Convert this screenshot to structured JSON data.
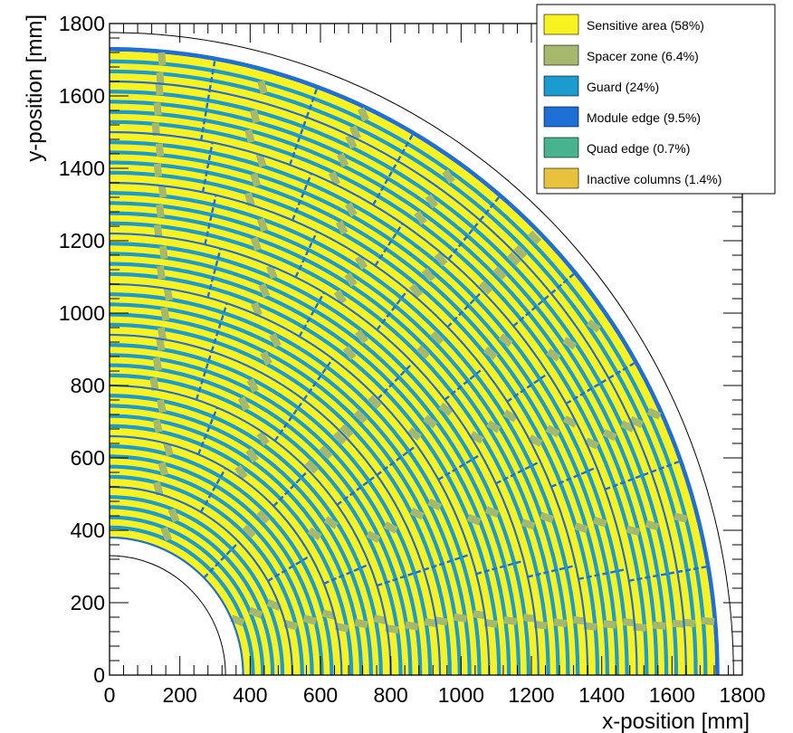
{
  "chart_data": {
    "type": "heatmap",
    "xlabel": "x-position [mm]",
    "ylabel": "y-position [mm]",
    "xlim": [
      0,
      1800
    ],
    "ylim": [
      0,
      1800
    ],
    "x_ticks": [
      "0",
      "200",
      "400",
      "600",
      "800",
      "1000",
      "1200",
      "1400",
      "1600",
      "1800"
    ],
    "y_ticks": [
      "0",
      "200",
      "400",
      "600",
      "800",
      "1000",
      "1200",
      "1400",
      "1600",
      "1800"
    ],
    "grid": false,
    "legend_position": "top-right",
    "legend": [
      {
        "label": "Sensitive area (58%)",
        "color": "#f8f320",
        "fraction": 58
      },
      {
        "label": "Spacer zone (6.4%)",
        "color": "#a6b86c",
        "fraction": 6.4
      },
      {
        "label": "Guard (24%)",
        "color": "#1c9bcf",
        "fraction": 24
      },
      {
        "label": "Module edge (9.5%)",
        "color": "#1e6fd6",
        "fraction": 9.5
      },
      {
        "label": "Quad edge (0.7%)",
        "color": "#48b38f",
        "fraction": 0.7
      },
      {
        "label": "Inactive columns (1.4%)",
        "color": "#e8c23c",
        "fraction": 1.4
      }
    ],
    "geometry": {
      "inner_circle_radius_mm": 330,
      "outer_circle_radius_mm": 1775,
      "active_inner_radius_mm": 380,
      "active_outer_radius_mm": 1735,
      "ring_boundaries_mm": [
        380,
        520,
        660,
        800,
        940,
        1080,
        1220,
        1360,
        1500,
        1640,
        1735
      ]
    }
  }
}
